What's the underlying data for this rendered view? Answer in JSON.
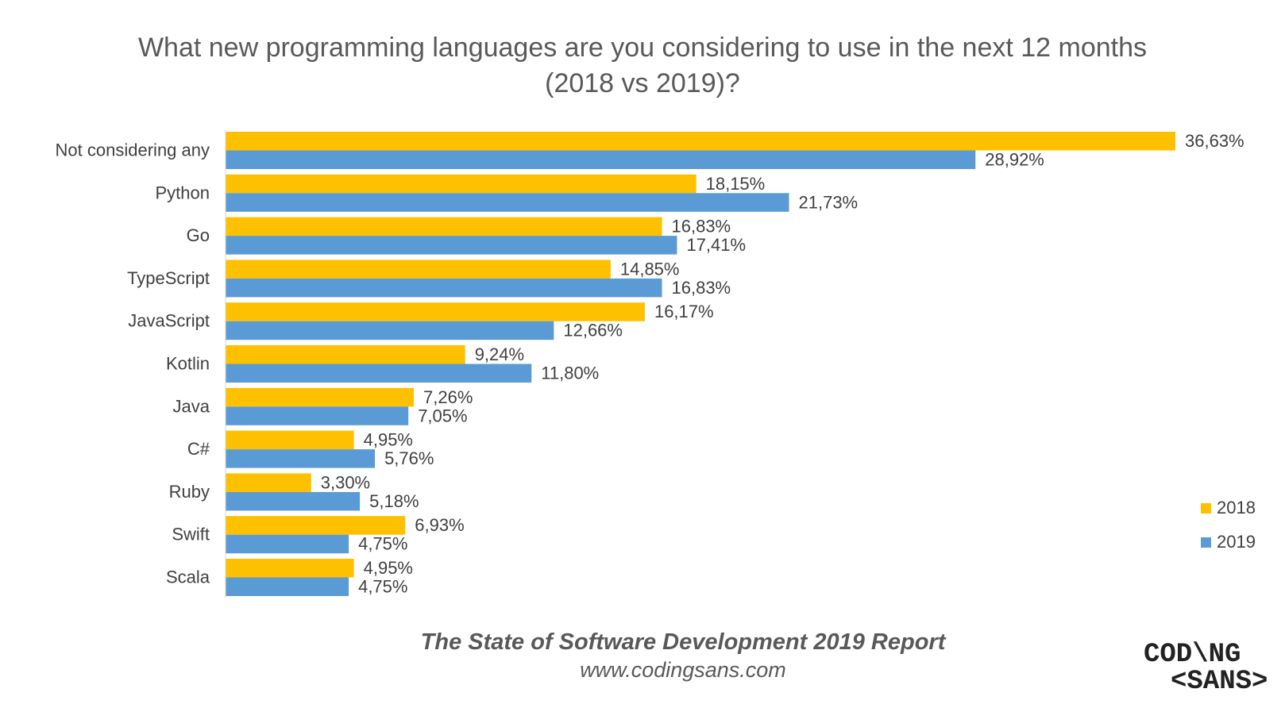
{
  "title": {
    "line1": "What new programming languages are you considering to use in the next 12 months",
    "line2": "(2018 vs 2019)?"
  },
  "chart_data": {
    "type": "bar",
    "orientation": "horizontal",
    "title": "What new programming languages are you considering to use in the next 12 months (2018 vs 2019)?",
    "categories": [
      "Not considering any",
      "Python",
      "Go",
      "TypeScript",
      "JavaScript",
      "Kotlin",
      "Java",
      "C#",
      "Ruby",
      "Swift",
      "Scala"
    ],
    "series": [
      {
        "name": "2018",
        "color": "#FFC000",
        "values": [
          36.63,
          18.15,
          16.83,
          14.85,
          16.17,
          9.24,
          7.26,
          4.95,
          3.3,
          6.93,
          4.95
        ],
        "labels": [
          "36,63%",
          "18,15%",
          "16,83%",
          "14,85%",
          "16,17%",
          "9,24%",
          "7,26%",
          "4,95%",
          "3,30%",
          "6,93%",
          "4,95%"
        ]
      },
      {
        "name": "2019",
        "color": "#5B9BD5",
        "values": [
          28.92,
          21.73,
          17.41,
          16.83,
          12.66,
          11.8,
          7.05,
          5.76,
          5.18,
          4.75,
          4.75
        ],
        "labels": [
          "28,92%",
          "21,73%",
          "17,41%",
          "16,83%",
          "12,66%",
          "11,80%",
          "7,05%",
          "5,76%",
          "5,18%",
          "4,75%",
          "4,75%"
        ]
      }
    ],
    "xlim": [
      0,
      38
    ],
    "grid": false,
    "legend_position": "right"
  },
  "footer": {
    "report": "The State of Software Development 2019 Report",
    "url": "www.codingsans.com"
  },
  "logo": {
    "line1": "COD\\NG",
    "line2": "<SANS>"
  }
}
